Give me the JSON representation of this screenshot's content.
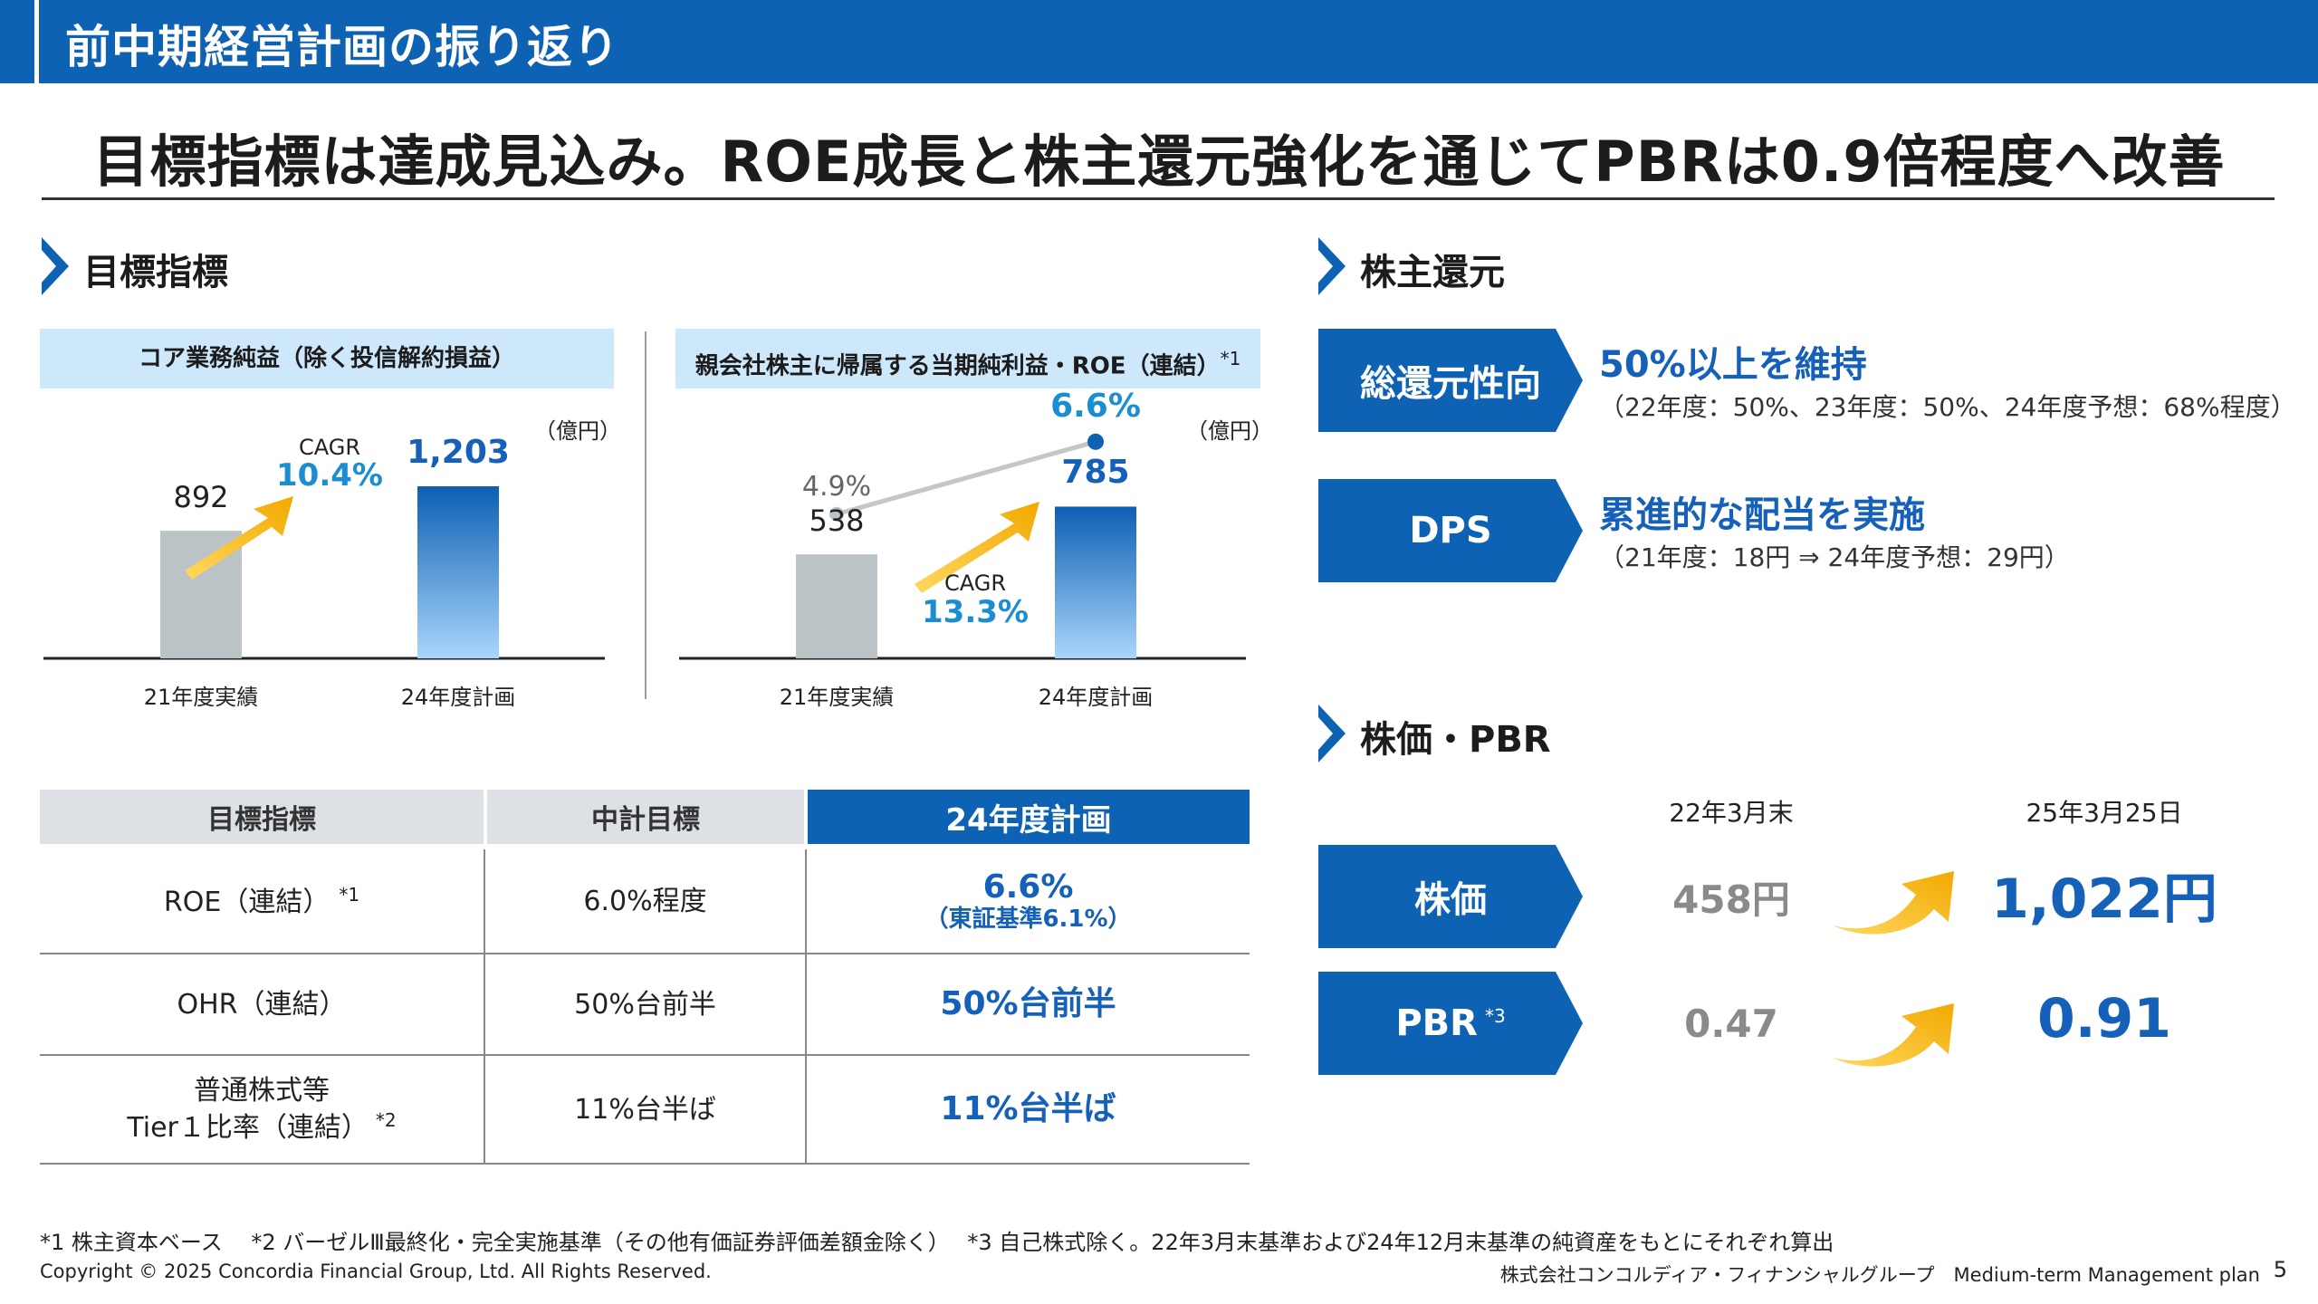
{
  "header": {
    "title": "前中期経営計画の振り返り"
  },
  "headline": "目標指標は達成見込み。ROE成長と株主還元強化を通じてPBRは0.9倍程度へ改善",
  "section_titles": {
    "targets": "目標指標",
    "returns": "株主還元",
    "price": "株価・PBR"
  },
  "colors": {
    "brand_blue": "#0d62b4",
    "accent_text_blue": "#1560b8",
    "cagr_blue": "#1a8ed0",
    "arrow_yellow": "#f7b500",
    "bar_gray": "#bcc3c6"
  },
  "chart1": {
    "title": "コア業務純益（除く投信解約損益）",
    "unit": "（億円）",
    "cagr_label": "CAGR",
    "cagr_value": "10.4%"
  },
  "chart2": {
    "title": "親会社株主に帰属する当期純利益・ROE（連結）",
    "title_note": "*1",
    "unit": "（億円）",
    "cagr_label": "CAGR",
    "cagr_value": "13.3%",
    "roe_labels": [
      "4.9%",
      "6.6%"
    ]
  },
  "chart_data": [
    {
      "type": "bar",
      "title": "コア業務純益（除く投信解約損益）",
      "unit": "（億円）",
      "categories": [
        "21年度実績",
        "24年度計画"
      ],
      "values": [
        892,
        1203
      ],
      "value_labels": [
        "892",
        "1,203"
      ],
      "annotation": "CAGR 10.4%"
    },
    {
      "type": "bar",
      "title": "親会社株主に帰属する当期純利益・ROE（連結）",
      "unit": "（億円）",
      "categories": [
        "21年度実績",
        "24年度計画"
      ],
      "values": [
        538,
        785
      ],
      "value_labels": [
        "538",
        "785"
      ],
      "line_series": {
        "values": [
          4.9,
          6.6
        ],
        "labels": [
          "4.9%",
          "6.6%"
        ]
      },
      "annotation": "CAGR 13.3%"
    }
  ],
  "table": {
    "headers": [
      "目標指標",
      "中計目標",
      "24年度計画"
    ],
    "rows": [
      {
        "metric": "ROE（連結）",
        "note": "*1",
        "target": "6.0%程度",
        "plan": "6.6%",
        "plan_sub": "（東証基準6.1%）"
      },
      {
        "metric": "OHR（連結）",
        "note": "",
        "target": "50%台前半",
        "plan": "50%台前半",
        "plan_sub": ""
      },
      {
        "metric_line1": "普通株式等",
        "metric_line2": "Tier１比率（連結）",
        "note": "*2",
        "target": "11%台半ば",
        "plan": "11%台半ば",
        "plan_sub": ""
      }
    ]
  },
  "returns": {
    "items": [
      {
        "label": "総還元性向",
        "headline": "50%以上を維持",
        "detail": "（22年度：50%、23年度：50%、24年度予想：68%程度）"
      },
      {
        "label": "DPS",
        "headline": "累進的な配当を実施",
        "detail": "（21年度：18円 ⇒ 24年度予想：29円）"
      }
    ]
  },
  "price": {
    "date_before": "22年3月末",
    "date_after": "25年3月25日",
    "rows": [
      {
        "label": "株価",
        "note": "",
        "before": "458円",
        "after": "1,022円"
      },
      {
        "label": "PBR",
        "note": "*3",
        "before": "0.47",
        "after": "0.91"
      }
    ]
  },
  "footnotes": "*1 株主資本ベース　 *2 バーゼルⅢ最終化・完全実施基準（その他有価証券評価差額金除く）　 *3 自己株式除く。22年3月末基準および24年12月末基準の純資産をもとにそれぞれ算出",
  "copyright": "Copyright © 2025 Concordia Financial Group, Ltd. All Rights Reserved.",
  "footer_right": "株式会社コンコルディア・フィナンシャルグループ　Medium-term Management plan",
  "page_number": "5"
}
